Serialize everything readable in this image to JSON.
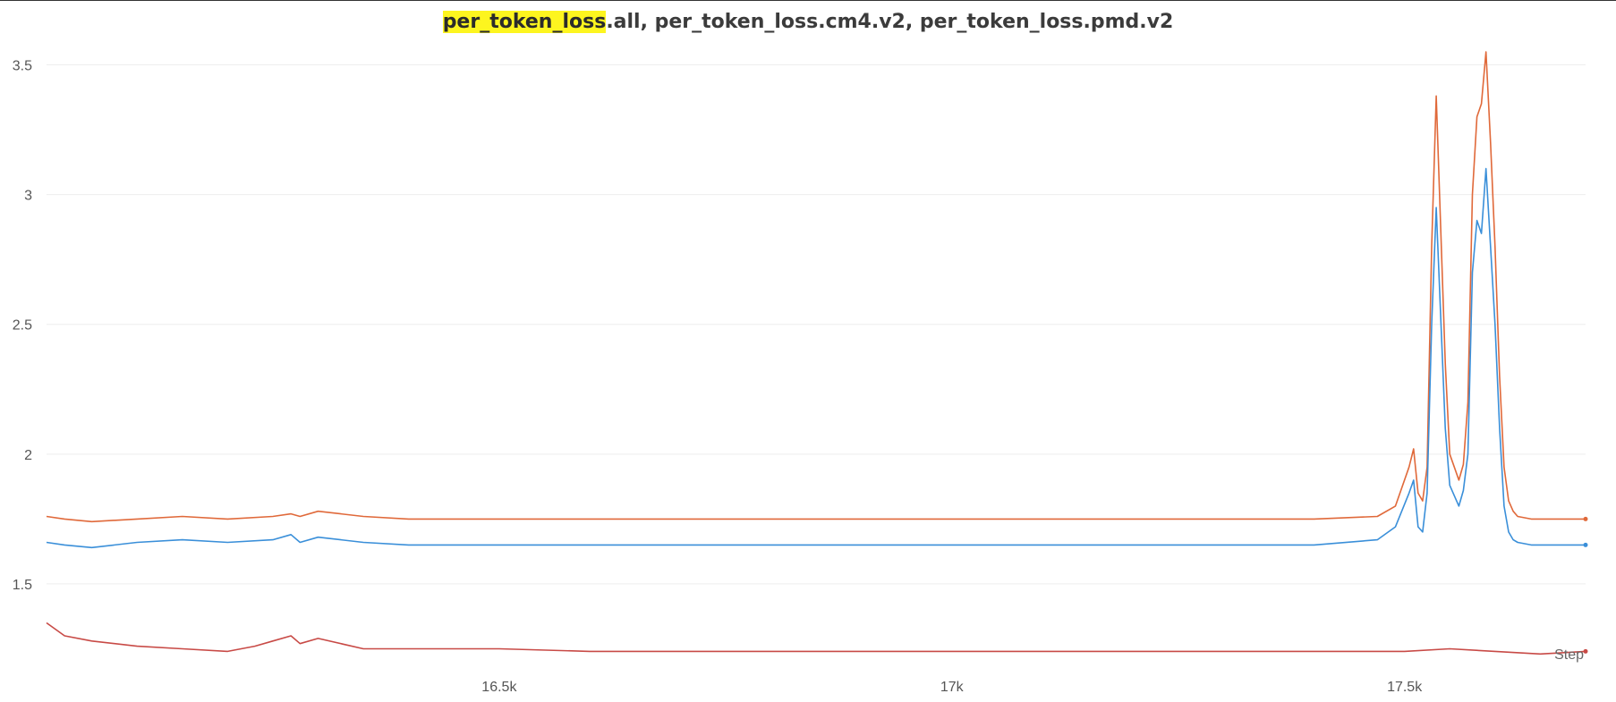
{
  "title": {
    "highlight": "per_token_loss",
    "rest": ".all, per_token_loss.cm4.v2, per_token_loss.pmd.v2"
  },
  "colors": {
    "series_top": "#e0693a",
    "series_mid": "#3a8fd9",
    "series_low": "#c84a46",
    "grid": "#eeeeee",
    "highlight": "#fdf51f"
  },
  "chart_data": {
    "type": "line",
    "title": "per_token_loss.all, per_token_loss.cm4.v2, per_token_loss.pmd.v2",
    "xlabel": "Step",
    "ylabel": "",
    "xlim": [
      16000,
      17700
    ],
    "ylim": [
      1.2,
      3.55
    ],
    "grid": true,
    "legend": "none",
    "yticks": [
      1.5,
      2,
      2.5,
      3,
      3.5
    ],
    "ytick_labels": [
      "1.5",
      "2",
      "2.5",
      "3",
      "3.5"
    ],
    "xticks": [
      16500,
      17000,
      17500
    ],
    "xtick_labels": [
      "16.5k",
      "17k",
      "17.5k"
    ],
    "series": [
      {
        "color": "#e0693a",
        "x": [
          16000,
          16020,
          16050,
          16100,
          16150,
          16200,
          16250,
          16270,
          16280,
          16300,
          16350,
          16400,
          16500,
          16600,
          16700,
          16800,
          16900,
          17000,
          17100,
          17200,
          17300,
          17400,
          17470,
          17490,
          17505,
          17510,
          17515,
          17520,
          17525,
          17530,
          17535,
          17545,
          17550,
          17555,
          17560,
          17565,
          17570,
          17575,
          17580,
          17585,
          17590,
          17595,
          17600,
          17605,
          17610,
          17615,
          17620,
          17625,
          17640,
          17660,
          17700
        ],
        "y": [
          1.76,
          1.75,
          1.74,
          1.75,
          1.76,
          1.75,
          1.76,
          1.77,
          1.76,
          1.78,
          1.76,
          1.75,
          1.75,
          1.75,
          1.75,
          1.75,
          1.75,
          1.75,
          1.75,
          1.75,
          1.75,
          1.75,
          1.76,
          1.8,
          1.95,
          2.02,
          1.85,
          1.82,
          1.95,
          2.8,
          3.38,
          2.35,
          2.0,
          1.95,
          1.9,
          1.96,
          2.2,
          3.0,
          3.3,
          3.35,
          3.55,
          3.2,
          2.8,
          2.3,
          1.95,
          1.82,
          1.78,
          1.76,
          1.75,
          1.75,
          1.75
        ]
      },
      {
        "color": "#3a8fd9",
        "x": [
          16000,
          16020,
          16050,
          16100,
          16150,
          16200,
          16250,
          16270,
          16280,
          16300,
          16350,
          16400,
          16500,
          16600,
          16700,
          16800,
          16900,
          17000,
          17100,
          17200,
          17300,
          17400,
          17470,
          17490,
          17505,
          17510,
          17515,
          17520,
          17525,
          17530,
          17535,
          17545,
          17550,
          17555,
          17560,
          17565,
          17570,
          17575,
          17580,
          17585,
          17590,
          17595,
          17600,
          17605,
          17610,
          17615,
          17620,
          17625,
          17640,
          17660,
          17700
        ],
        "y": [
          1.66,
          1.65,
          1.64,
          1.66,
          1.67,
          1.66,
          1.67,
          1.69,
          1.66,
          1.68,
          1.66,
          1.65,
          1.65,
          1.65,
          1.65,
          1.65,
          1.65,
          1.65,
          1.65,
          1.65,
          1.65,
          1.65,
          1.67,
          1.72,
          1.85,
          1.9,
          1.72,
          1.7,
          1.85,
          2.5,
          2.95,
          2.1,
          1.88,
          1.84,
          1.8,
          1.86,
          2.0,
          2.7,
          2.9,
          2.85,
          3.1,
          2.8,
          2.5,
          2.1,
          1.8,
          1.7,
          1.67,
          1.66,
          1.65,
          1.65,
          1.65
        ]
      },
      {
        "color": "#c84a46",
        "x": [
          16000,
          16020,
          16050,
          16100,
          16150,
          16200,
          16230,
          16250,
          16270,
          16280,
          16300,
          16350,
          16400,
          16500,
          16600,
          16700,
          16800,
          16900,
          17000,
          17100,
          17200,
          17300,
          17400,
          17500,
          17550,
          17600,
          17650,
          17700
        ],
        "y": [
          1.35,
          1.3,
          1.28,
          1.26,
          1.25,
          1.24,
          1.26,
          1.28,
          1.3,
          1.27,
          1.29,
          1.25,
          1.25,
          1.25,
          1.24,
          1.24,
          1.24,
          1.24,
          1.24,
          1.24,
          1.24,
          1.24,
          1.24,
          1.24,
          1.25,
          1.24,
          1.23,
          1.24
        ]
      }
    ]
  }
}
